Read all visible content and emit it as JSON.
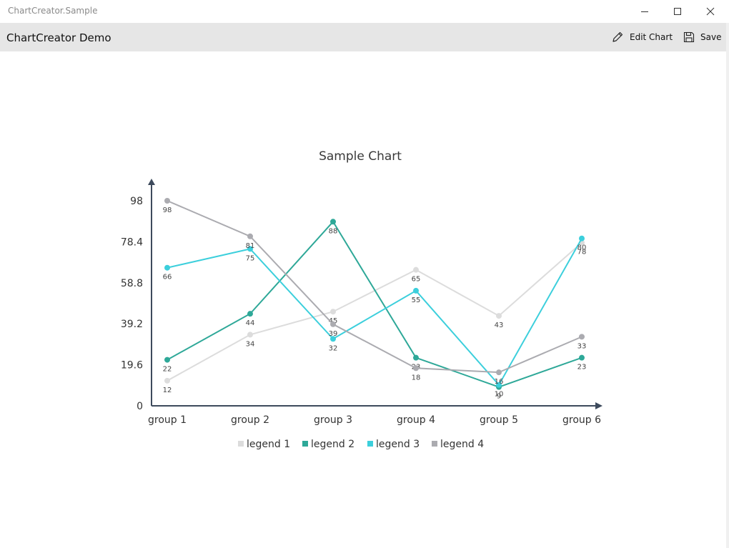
{
  "window": {
    "title": "ChartCreator.Sample"
  },
  "header": {
    "title": "ChartCreator Demo",
    "edit_label": "Edit Chart",
    "save_label": "Save"
  },
  "colors": {
    "axis": "#3d4a5c",
    "legend_1": "#dcdcdc",
    "legend_2": "#2ea898",
    "legend_3": "#3ccfdc",
    "legend_4": "#ababb0"
  },
  "chart_data": {
    "type": "line",
    "title": "Sample Chart",
    "categories": [
      "group 1",
      "group 2",
      "group 3",
      "group 4",
      "group 5",
      "group 6"
    ],
    "yticks": [
      "0",
      "19.6",
      "39.2",
      "58.8",
      "78.4",
      "98"
    ],
    "ylim": [
      0,
      98
    ],
    "legend_position": "bottom",
    "grid": false,
    "series": [
      {
        "name": "legend 1",
        "color": "#dcdcdc",
        "values": [
          12,
          34,
          45,
          65,
          43,
          78
        ]
      },
      {
        "name": "legend 2",
        "color": "#2ea898",
        "values": [
          22,
          44,
          88,
          23,
          9,
          23
        ]
      },
      {
        "name": "legend 3",
        "color": "#3ccfdc",
        "values": [
          66,
          75,
          32,
          55,
          10,
          80
        ]
      },
      {
        "name": "legend 4",
        "color": "#ababb0",
        "values": [
          98,
          81,
          39,
          18,
          16,
          33
        ]
      }
    ]
  }
}
